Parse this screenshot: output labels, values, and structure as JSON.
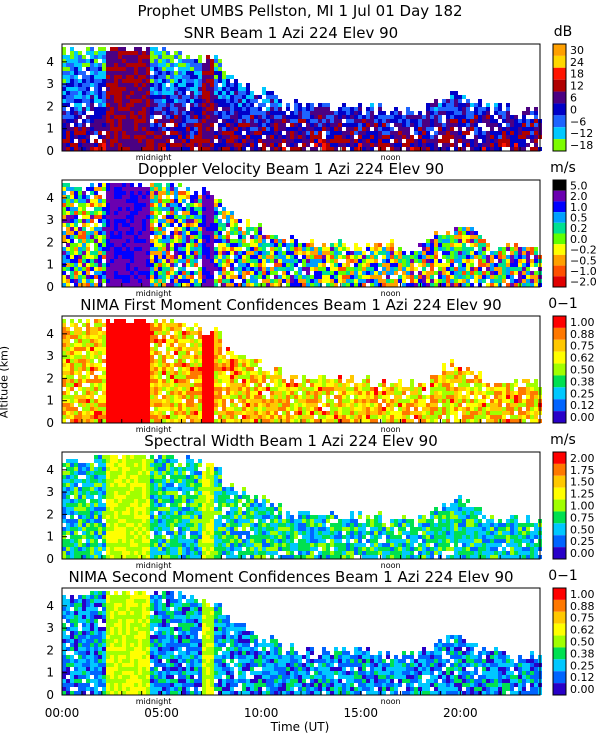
{
  "header": {
    "title": "Prophet  UMBS Pellston, MI    1 Jul 01 Day 182"
  },
  "axes": {
    "ylabel": "Altitude (km)",
    "xlabel": "Time (UT)",
    "x_ticks": [
      "00:00",
      "05:00",
      "10:00",
      "15:00",
      "20:00"
    ],
    "y_ticks": [
      "0",
      "1",
      "2",
      "3",
      "4"
    ],
    "midnight_label": "midnight",
    "noon_label": "noon"
  },
  "chart_data": [
    {
      "type": "heatmap",
      "title": "SNR Beam 1 Azi 224 Elev 90",
      "unit": "dB",
      "x_range": [
        0,
        24
      ],
      "y_range": [
        0,
        4.8
      ],
      "colorbar": [
        {
          "label": "30",
          "color": "#ffa000"
        },
        {
          "label": "24",
          "color": "#ffd700"
        },
        {
          "label": "18",
          "color": "#ff1400"
        },
        {
          "label": "12",
          "color": "#b00000"
        },
        {
          "label": "6",
          "color": "#4b0082"
        },
        {
          "label": "0",
          "color": "#0000c8"
        },
        {
          "label": "−6",
          "color": "#1e64ff"
        },
        {
          "label": "−12",
          "color": "#00c8ff"
        },
        {
          "label": "−18",
          "color": "#7cfc00"
        }
      ]
    },
    {
      "type": "heatmap",
      "title": "Doppler Velocity Beam 1 Azi 224 Elev 90",
      "unit": "m/s",
      "x_range": [
        0,
        24
      ],
      "y_range": [
        0,
        4.8
      ],
      "colorbar": [
        {
          "label": "5.0",
          "color": "#000000"
        },
        {
          "label": "2.0",
          "color": "#6a00b0"
        },
        {
          "label": "1.0",
          "color": "#0000ff"
        },
        {
          "label": "0.5",
          "color": "#00a0ff"
        },
        {
          "label": "0.2",
          "color": "#00e090"
        },
        {
          "label": "0.0",
          "color": "#60ff00"
        },
        {
          "label": "−0.2",
          "color": "#ffff00"
        },
        {
          "label": "−0.5",
          "color": "#ffa000"
        },
        {
          "label": "−1.0",
          "color": "#ff5000"
        },
        {
          "label": "−2.0",
          "color": "#e00000"
        }
      ]
    },
    {
      "type": "heatmap",
      "title": "NIMA First Moment Confidences Beam 1 Azi 224 Elev 90",
      "unit": "0−1",
      "x_range": [
        0,
        24
      ],
      "y_range": [
        0,
        4.8
      ],
      "colorbar": [
        {
          "label": "1.00",
          "color": "#ff0000"
        },
        {
          "label": "0.88",
          "color": "#ff7800"
        },
        {
          "label": "0.75",
          "color": "#ffc800"
        },
        {
          "label": "0.62",
          "color": "#ffff00"
        },
        {
          "label": "0.50",
          "color": "#a0ff00"
        },
        {
          "label": "0.38",
          "color": "#00e050"
        },
        {
          "label": "0.25",
          "color": "#00c8ff"
        },
        {
          "label": "0.12",
          "color": "#0064ff"
        },
        {
          "label": "0.00",
          "color": "#2800c8"
        }
      ]
    },
    {
      "type": "heatmap",
      "title": "Spectral Width Beam 1 Azi 224 Elev 90",
      "unit": "m/s",
      "x_range": [
        0,
        24
      ],
      "y_range": [
        0,
        4.8
      ],
      "colorbar": [
        {
          "label": "2.00",
          "color": "#ff0000"
        },
        {
          "label": "1.75",
          "color": "#ff7800"
        },
        {
          "label": "1.50",
          "color": "#ffc800"
        },
        {
          "label": "1.25",
          "color": "#ffff00"
        },
        {
          "label": "1.00",
          "color": "#a0ff00"
        },
        {
          "label": "0.75",
          "color": "#00e050"
        },
        {
          "label": "0.50",
          "color": "#00c8ff"
        },
        {
          "label": "0.25",
          "color": "#0064ff"
        },
        {
          "label": "0.00",
          "color": "#2800c8"
        }
      ]
    },
    {
      "type": "heatmap",
      "title": "NIMA Second Moment Confidences Beam 1 Azi 224 Elev 90",
      "unit": "0−1",
      "x_range": [
        0,
        24
      ],
      "y_range": [
        0,
        4.8
      ],
      "colorbar": [
        {
          "label": "1.00",
          "color": "#ff0000"
        },
        {
          "label": "0.88",
          "color": "#ff7800"
        },
        {
          "label": "0.75",
          "color": "#ffc800"
        },
        {
          "label": "0.62",
          "color": "#ffff00"
        },
        {
          "label": "0.50",
          "color": "#a0ff00"
        },
        {
          "label": "0.38",
          "color": "#00e050"
        },
        {
          "label": "0.25",
          "color": "#00c8ff"
        },
        {
          "label": "0.12",
          "color": "#0064ff"
        },
        {
          "label": "0.00",
          "color": "#2800c8"
        }
      ]
    }
  ]
}
